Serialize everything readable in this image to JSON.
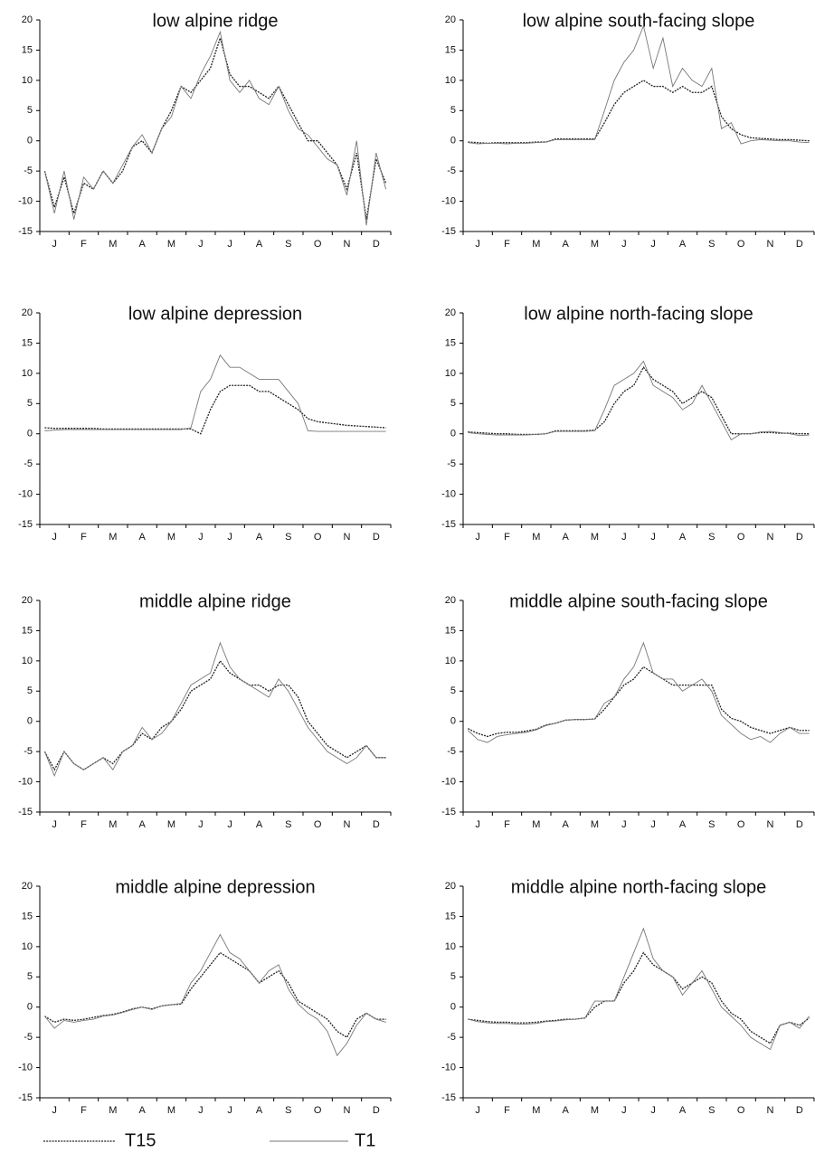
{
  "chart_data": [
    {
      "type": "line",
      "title": "low alpine ridge",
      "categories": [
        null,
        "J",
        null,
        null,
        "F",
        null,
        null,
        "M",
        null,
        null,
        "A",
        null,
        null,
        "M",
        null,
        null,
        "J",
        null,
        null,
        "J",
        null,
        null,
        "A",
        null,
        null,
        "S",
        null,
        null,
        "O",
        null,
        null,
        "N",
        null,
        null,
        "D",
        null
      ],
      "ylim": [
        -15,
        20
      ],
      "yticks": [
        -15,
        -10,
        -5,
        0,
        5,
        10,
        15,
        20
      ],
      "series": [
        {
          "color": "#222222",
          "line_style": "dotted",
          "values": [
            -5,
            -11,
            -6,
            -12,
            -7,
            -8,
            -5,
            -7,
            -5,
            -1,
            0,
            -2,
            2,
            5,
            9,
            8,
            10,
            12,
            17,
            11,
            9,
            9,
            8,
            7,
            9,
            6,
            3,
            0,
            0,
            -2,
            -4,
            -8,
            -2,
            -13,
            -3,
            -7
          ]
        },
        {
          "color": "#777777",
          "line_style": "solid",
          "values": [
            -5,
            -12,
            -5,
            -13,
            -6,
            -8,
            -5,
            -7,
            -4,
            -1,
            1,
            -2,
            2,
            4,
            9,
            7,
            11,
            14,
            18,
            10,
            8,
            10,
            7,
            6,
            9,
            5,
            2,
            1,
            -1,
            -3,
            -4,
            -9,
            0,
            -14,
            -2,
            -8
          ]
        }
      ]
    },
    {
      "type": "line",
      "title": "low alpine south-facing slope",
      "categories": [
        null,
        "J",
        null,
        null,
        "F",
        null,
        null,
        "M",
        null,
        null,
        "A",
        null,
        null,
        "M",
        null,
        null,
        "J",
        null,
        null,
        "J",
        null,
        null,
        "A",
        null,
        null,
        "S",
        null,
        null,
        "O",
        null,
        null,
        "N",
        null,
        null,
        "D",
        null
      ],
      "ylim": [
        -15,
        20
      ],
      "yticks": [
        -15,
        -10,
        -5,
        0,
        5,
        10,
        15,
        20
      ],
      "series": [
        {
          "color": "#222222",
          "line_style": "dotted",
          "values": [
            -0.2,
            -0.3,
            -0.4,
            -0.3,
            -0.3,
            -0.3,
            -0.3,
            -0.2,
            -0.2,
            0.3,
            0.3,
            0.3,
            0.3,
            0.3,
            3,
            6,
            8,
            9,
            10,
            9,
            9,
            8,
            9,
            8,
            8,
            9,
            4,
            2,
            1,
            0.5,
            0.4,
            0.3,
            0.2,
            0.2,
            0.1,
            0
          ]
        },
        {
          "color": "#777777",
          "line_style": "solid",
          "values": [
            -0.3,
            -0.5,
            -0.4,
            -0.4,
            -0.5,
            -0.4,
            -0.4,
            -0.3,
            -0.2,
            0.2,
            0.2,
            0.2,
            0.2,
            0.2,
            5,
            10,
            13,
            15,
            19,
            12,
            17,
            9,
            12,
            10,
            9,
            12,
            2,
            3,
            -0.5,
            0,
            0.2,
            0.1,
            0,
            0,
            -0.2,
            -0.3
          ]
        }
      ]
    },
    {
      "type": "line",
      "title": "low alpine depression",
      "categories": [
        null,
        "J",
        null,
        null,
        "F",
        null,
        null,
        "M",
        null,
        null,
        "A",
        null,
        null,
        "M",
        null,
        null,
        "J",
        null,
        null,
        "J",
        null,
        null,
        "A",
        null,
        null,
        "S",
        null,
        null,
        "O",
        null,
        null,
        "N",
        null,
        null,
        "D",
        null
      ],
      "ylim": [
        -15,
        20
      ],
      "yticks": [
        -15,
        -10,
        -5,
        0,
        5,
        10,
        15,
        20
      ],
      "series": [
        {
          "color": "#222222",
          "line_style": "dotted",
          "values": [
            1.0,
            0.9,
            0.9,
            0.9,
            0.9,
            0.9,
            0.8,
            0.8,
            0.8,
            0.8,
            0.8,
            0.8,
            0.8,
            0.8,
            0.8,
            0.8,
            0,
            4,
            7,
            8,
            8,
            8,
            7,
            7,
            6,
            5,
            4,
            2.5,
            2,
            1.8,
            1.6,
            1.4,
            1.3,
            1.2,
            1.1,
            1.0
          ]
        },
        {
          "color": "#777777",
          "line_style": "solid",
          "values": [
            0.5,
            0.6,
            0.7,
            0.7,
            0.7,
            0.7,
            0.7,
            0.7,
            0.7,
            0.7,
            0.7,
            0.7,
            0.7,
            0.7,
            0.7,
            1,
            7,
            9,
            13,
            11,
            11,
            10,
            9,
            9,
            9,
            7,
            5,
            0.5,
            0.4,
            0.4,
            0.4,
            0.4,
            0.4,
            0.4,
            0.4,
            0.4
          ]
        }
      ]
    },
    {
      "type": "line",
      "title": "low alpine north-facing slope",
      "categories": [
        null,
        "J",
        null,
        null,
        "F",
        null,
        null,
        "M",
        null,
        null,
        "A",
        null,
        null,
        "M",
        null,
        null,
        "J",
        null,
        null,
        "J",
        null,
        null,
        "A",
        null,
        null,
        "S",
        null,
        null,
        "O",
        null,
        null,
        "N",
        null,
        null,
        "D",
        null
      ],
      "ylim": [
        -15,
        20
      ],
      "yticks": [
        -15,
        -10,
        -5,
        0,
        5,
        10,
        15,
        20
      ],
      "series": [
        {
          "color": "#222222",
          "line_style": "dotted",
          "values": [
            0.3,
            0.2,
            0.1,
            0,
            0,
            -0.1,
            -0.1,
            -0.1,
            0,
            0.5,
            0.5,
            0.5,
            0.5,
            0.6,
            2,
            5,
            7,
            8,
            11,
            9,
            8,
            7,
            5,
            6,
            7,
            6,
            3,
            0,
            0,
            0,
            0.2,
            0.2,
            0.1,
            0.1,
            0,
            0
          ]
        },
        {
          "color": "#777777",
          "line_style": "solid",
          "values": [
            0.2,
            0,
            -0.1,
            -0.2,
            -0.2,
            -0.2,
            -0.2,
            -0.1,
            0,
            0.4,
            0.4,
            0.4,
            0.4,
            0.5,
            4,
            8,
            9,
            10,
            12,
            8,
            7,
            6,
            4,
            5,
            8,
            5,
            2,
            -1,
            0,
            0,
            0.3,
            0.4,
            0.2,
            0,
            -0.3,
            -0.2
          ]
        }
      ]
    },
    {
      "type": "line",
      "title": "middle alpine ridge",
      "categories": [
        null,
        "J",
        null,
        null,
        "F",
        null,
        null,
        "M",
        null,
        null,
        "A",
        null,
        null,
        "M",
        null,
        null,
        "J",
        null,
        null,
        "J",
        null,
        null,
        "A",
        null,
        null,
        "S",
        null,
        null,
        "O",
        null,
        null,
        "N",
        null,
        null,
        "D",
        null
      ],
      "ylim": [
        -15,
        20
      ],
      "yticks": [
        -15,
        -10,
        -5,
        0,
        5,
        10,
        15,
        20
      ],
      "series": [
        {
          "color": "#222222",
          "line_style": "dotted",
          "values": [
            -5,
            -8,
            -5,
            -7,
            -8,
            -7,
            -6,
            -7,
            -5,
            -4,
            -2,
            -3,
            -1,
            0,
            2,
            5,
            6,
            7,
            10,
            8,
            7,
            6,
            6,
            5,
            6,
            6,
            4,
            0,
            -2,
            -4,
            -5,
            -6,
            -5,
            -4,
            -6,
            -6
          ]
        },
        {
          "color": "#777777",
          "line_style": "solid",
          "values": [
            -5,
            -9,
            -5,
            -7,
            -8,
            -7,
            -6,
            -8,
            -5,
            -4,
            -1,
            -3,
            -2,
            0,
            3,
            6,
            7,
            8,
            13,
            9,
            7,
            6,
            5,
            4,
            7,
            5,
            2,
            -1,
            -3,
            -5,
            -6,
            -7,
            -6,
            -4,
            -6,
            -6
          ]
        }
      ]
    },
    {
      "type": "line",
      "title": "middle alpine south-facing slope",
      "categories": [
        null,
        "J",
        null,
        null,
        "F",
        null,
        null,
        "M",
        null,
        null,
        "A",
        null,
        null,
        "M",
        null,
        null,
        "J",
        null,
        null,
        "J",
        null,
        null,
        "A",
        null,
        null,
        "S",
        null,
        null,
        "O",
        null,
        null,
        "N",
        null,
        null,
        "D",
        null
      ],
      "ylim": [
        -15,
        20
      ],
      "yticks": [
        -15,
        -10,
        -5,
        0,
        5,
        10,
        15,
        20
      ],
      "series": [
        {
          "color": "#222222",
          "line_style": "dotted",
          "values": [
            -1.2,
            -2,
            -2.5,
            -2,
            -1.8,
            -1.8,
            -1.6,
            -1.3,
            -0.6,
            -0.3,
            0.2,
            0.3,
            0.3,
            0.4,
            2,
            4,
            6,
            7,
            9,
            8,
            7,
            6,
            6,
            6,
            6,
            6,
            2,
            0.5,
            0,
            -1,
            -1.5,
            -2,
            -1.5,
            -1,
            -1.5,
            -1.5
          ]
        },
        {
          "color": "#777777",
          "line_style": "solid",
          "values": [
            -1.5,
            -3,
            -3.5,
            -2.5,
            -2.2,
            -2,
            -1.8,
            -1.4,
            -0.7,
            -0.3,
            0.2,
            0.3,
            0.3,
            0.4,
            3,
            4,
            7,
            9,
            13,
            8,
            7,
            7,
            5,
            6,
            7,
            5,
            1,
            -0.5,
            -2,
            -3,
            -2.5,
            -3.5,
            -2,
            -1,
            -2,
            -2
          ]
        }
      ]
    },
    {
      "type": "line",
      "title": "middle alpine depression",
      "categories": [
        null,
        "J",
        null,
        null,
        "F",
        null,
        null,
        "M",
        null,
        null,
        "A",
        null,
        null,
        "M",
        null,
        null,
        "J",
        null,
        null,
        "J",
        null,
        null,
        "A",
        null,
        null,
        "S",
        null,
        null,
        "O",
        null,
        null,
        "N",
        null,
        null,
        "D",
        null
      ],
      "ylim": [
        -15,
        20
      ],
      "yticks": [
        -15,
        -10,
        -5,
        0,
        5,
        10,
        15,
        20
      ],
      "series": [
        {
          "color": "#222222",
          "line_style": "dotted",
          "values": [
            -1.5,
            -2.5,
            -2,
            -2.2,
            -2,
            -1.7,
            -1.4,
            -1.2,
            -0.8,
            -0.3,
            0,
            -0.3,
            0.2,
            0.4,
            0.5,
            3,
            5,
            7,
            9,
            8,
            7,
            6,
            4,
            5,
            6,
            4,
            1,
            0,
            -1,
            -2,
            -4,
            -5,
            -2,
            -1,
            -2,
            -2
          ]
        },
        {
          "color": "#777777",
          "line_style": "solid",
          "values": [
            -1.5,
            -3.5,
            -2.2,
            -2.5,
            -2.2,
            -2,
            -1.5,
            -1.3,
            -0.9,
            -0.4,
            0,
            -0.4,
            0.2,
            0.4,
            0.6,
            4,
            6,
            9,
            12,
            9,
            8,
            6,
            4,
            6,
            7,
            3,
            0.5,
            -1,
            -2,
            -4,
            -8,
            -6,
            -3,
            -1,
            -2,
            -2.5
          ]
        }
      ]
    },
    {
      "type": "line",
      "title": "middle alpine north-facing slope",
      "categories": [
        null,
        "J",
        null,
        null,
        "F",
        null,
        null,
        "M",
        null,
        null,
        "A",
        null,
        null,
        "M",
        null,
        null,
        "J",
        null,
        null,
        "J",
        null,
        null,
        "A",
        null,
        null,
        "S",
        null,
        null,
        "O",
        null,
        null,
        "N",
        null,
        null,
        "D",
        null
      ],
      "ylim": [
        -15,
        20
      ],
      "yticks": [
        -15,
        -10,
        -5,
        0,
        5,
        10,
        15,
        20
      ],
      "series": [
        {
          "color": "#222222",
          "line_style": "dotted",
          "values": [
            -2,
            -2.2,
            -2.4,
            -2.5,
            -2.5,
            -2.6,
            -2.6,
            -2.5,
            -2.3,
            -2.2,
            -2,
            -2,
            -1.8,
            0,
            1,
            1,
            4,
            6,
            9,
            7,
            6,
            5,
            3,
            4,
            5,
            4,
            1,
            -1,
            -2,
            -4,
            -5,
            -6,
            -3,
            -2.5,
            -3,
            -1.8
          ]
        },
        {
          "color": "#777777",
          "line_style": "solid",
          "values": [
            -2,
            -2.4,
            -2.6,
            -2.7,
            -2.7,
            -2.8,
            -2.8,
            -2.7,
            -2.4,
            -2.3,
            -2.1,
            -2,
            -1.8,
            1,
            1,
            1,
            5,
            9,
            13,
            8,
            6,
            5,
            2,
            4,
            6,
            3,
            0,
            -1.5,
            -3,
            -5,
            -6,
            -7,
            -3,
            -2.5,
            -3.5,
            -1.5
          ]
        }
      ]
    }
  ],
  "legend_entries": [
    "T15",
    "T1"
  ]
}
